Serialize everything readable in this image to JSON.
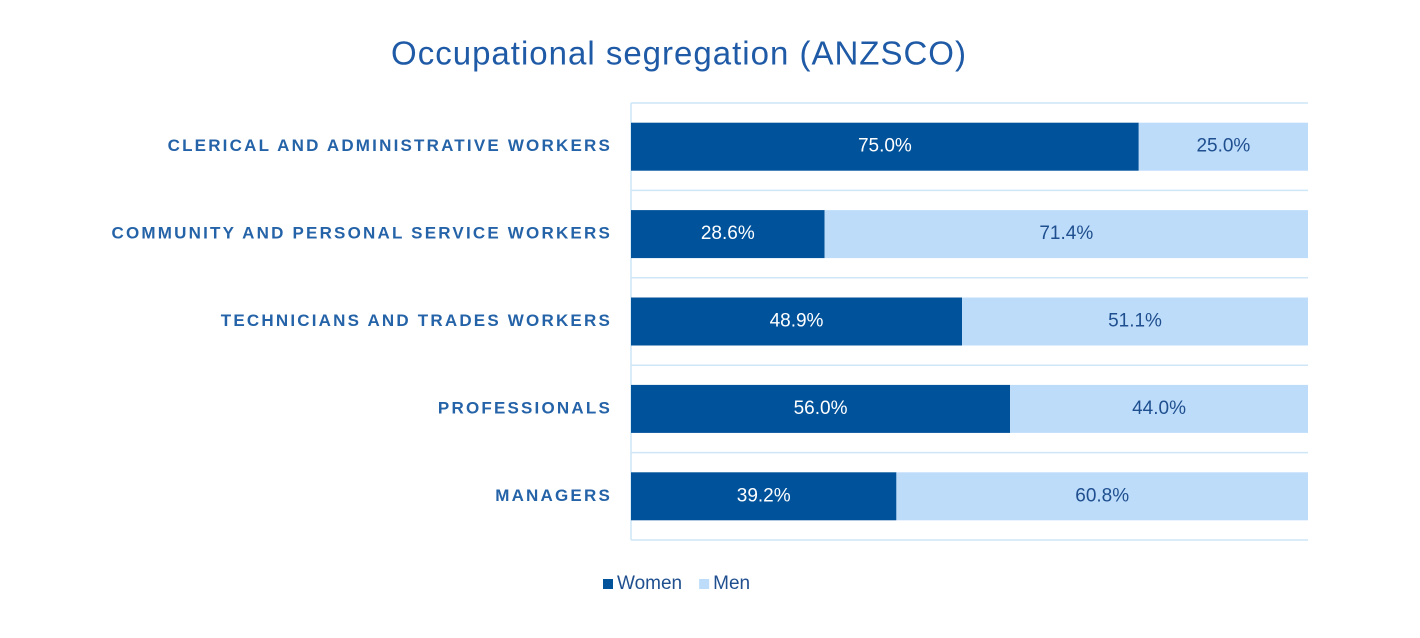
{
  "chart_data": {
    "type": "stacked-bar-horizontal",
    "title": "Occupational segregation (ANZSCO)",
    "categories": [
      "CLERICAL AND ADMINISTRATIVE WORKERS",
      "COMMUNITY AND PERSONAL SERVICE WORKERS",
      "TECHNICIANS AND TRADES WORKERS",
      "PROFESSIONALS",
      "MANAGERS"
    ],
    "series": [
      {
        "name": "Women",
        "color": "#00529b",
        "values": [
          75.0,
          28.6,
          48.9,
          56.0,
          39.2
        ],
        "value_labels": [
          "75.0%",
          "28.6%",
          "48.9%",
          "56.0%",
          "39.2%"
        ]
      },
      {
        "name": "Men",
        "color": "#bddcfa",
        "values": [
          25.0,
          71.4,
          51.1,
          44.0,
          60.8
        ],
        "value_labels": [
          "25.0%",
          "71.4%",
          "51.1%",
          "44.0%",
          "60.8%"
        ]
      }
    ],
    "xlim": [
      0,
      100
    ],
    "legend": "bottom"
  }
}
